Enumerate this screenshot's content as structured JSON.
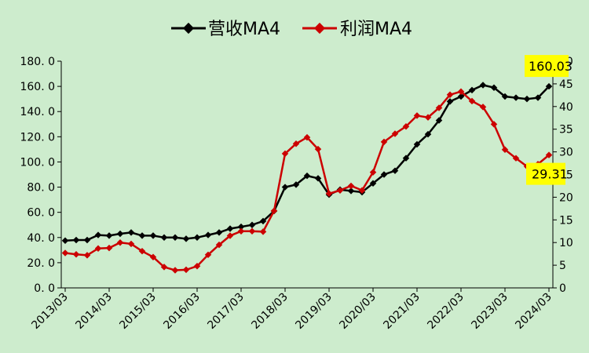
{
  "chart_data": {
    "type": "line",
    "legend": {
      "position": "top-center"
    },
    "grid": false,
    "x": [
      "2013/03",
      "2013/06",
      "2013/09",
      "2013/12",
      "2014/03",
      "2014/06",
      "2014/09",
      "2014/12",
      "2015/03",
      "2015/06",
      "2015/09",
      "2015/12",
      "2016/03",
      "2016/06",
      "2016/09",
      "2016/12",
      "2017/03",
      "2017/06",
      "2017/09",
      "2017/12",
      "2018/03",
      "2018/06",
      "2018/09",
      "2018/12",
      "2019/03",
      "2019/06",
      "2019/09",
      "2019/12",
      "2020/03",
      "2020/06",
      "2020/09",
      "2020/12",
      "2021/03",
      "2021/06",
      "2021/09",
      "2021/12",
      "2022/03",
      "2022/06",
      "2022/09",
      "2022/12",
      "2023/03",
      "2023/06",
      "2023/09",
      "2023/12",
      "2024/03"
    ],
    "x_tick_labels": [
      "2013/03",
      "2014/03",
      "2015/03",
      "2016/03",
      "2017/03",
      "2018/03",
      "2019/03",
      "2020/03",
      "2021/03",
      "2022/03",
      "2023/03",
      "2024/03"
    ],
    "y_left": {
      "ticks": [
        "0. 0",
        "20. 0",
        "40. 0",
        "60. 0",
        "80. 0",
        "100. 0",
        "120. 0",
        "140. 0",
        "160. 0",
        "180. 0"
      ],
      "range": [
        0,
        180
      ]
    },
    "y_right": {
      "ticks": [
        "0",
        "5",
        "10",
        "15",
        "20",
        "25",
        "30",
        "35",
        "40",
        "45",
        "50"
      ],
      "range": [
        0,
        50
      ]
    },
    "series": [
      {
        "name": "营收MA4",
        "axis": "left",
        "color": "#000000",
        "values": [
          37.5,
          38,
          38,
          42,
          41.5,
          43,
          44,
          41.5,
          41.5,
          40,
          40,
          39,
          40,
          42,
          44,
          47,
          48.5,
          50,
          53,
          61,
          80,
          82,
          89,
          87,
          74,
          78,
          77,
          76,
          83,
          90,
          93,
          103,
          114,
          122,
          133,
          148,
          152,
          157,
          161,
          159,
          152,
          151,
          150,
          151,
          160.03
        ]
      },
      {
        "name": "利润MA4",
        "axis": "right",
        "color": "#cc0000",
        "values": [
          7.7,
          7.4,
          7.2,
          8.7,
          8.8,
          10,
          9.7,
          8.1,
          6.8,
          4.6,
          3.9,
          4,
          4.8,
          7.3,
          9.5,
          11.5,
          12.5,
          12.5,
          12.4,
          17,
          29.6,
          31.8,
          33.2,
          30.6,
          20.8,
          21.5,
          22.5,
          21.5,
          25.5,
          32.2,
          34,
          35.6,
          38,
          37.6,
          39.7,
          42.6,
          43.3,
          41.2,
          39.9,
          36.1,
          30.5,
          28.6,
          26.8,
          27.3,
          29.31
        ]
      }
    ],
    "callouts": [
      {
        "series": 0,
        "text": "160.03"
      },
      {
        "series": 1,
        "text": "29.31"
      }
    ]
  }
}
